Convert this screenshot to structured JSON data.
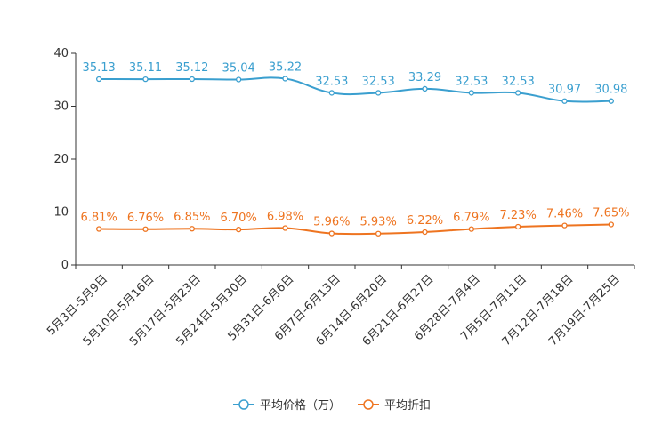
{
  "chart_data": {
    "type": "line",
    "categories": [
      "5月3日-5月9日",
      "5月10日-5月16日",
      "5月17日-5月23日",
      "5月24日-5月30日",
      "5月31日-6月6日",
      "6月7日-6月13日",
      "6月14日-6月20日",
      "6月21日-6月27日",
      "6月28日-7月4日",
      "7月5日-7月11日",
      "7月12日-7月18日",
      "7月19日-7月25日"
    ],
    "series": [
      {
        "name": "平均价格（万）",
        "color": "#3a9fcf",
        "values": [
          35.13,
          35.11,
          35.12,
          35.04,
          35.22,
          32.53,
          32.53,
          33.29,
          32.53,
          32.53,
          30.97,
          30.98
        ],
        "labels": [
          "35.13",
          "35.11",
          "35.12",
          "35.04",
          "35.22",
          "32.53",
          "32.53",
          "33.29",
          "32.53",
          "32.53",
          "30.97",
          "30.98"
        ]
      },
      {
        "name": "平均折扣",
        "color": "#ee7420",
        "values": [
          6.81,
          6.76,
          6.85,
          6.7,
          6.98,
          5.96,
          5.93,
          6.22,
          6.79,
          7.23,
          7.46,
          7.65
        ],
        "labels": [
          "6.81%",
          "6.76%",
          "6.85%",
          "6.70%",
          "6.98%",
          "5.96%",
          "5.93%",
          "6.22%",
          "6.79%",
          "7.23%",
          "7.46%",
          "7.65%"
        ]
      }
    ],
    "yticks": [
      "0",
      "10",
      "20",
      "30",
      "40"
    ],
    "ylim": [
      0,
      40
    ],
    "title": "",
    "xlabel": "",
    "ylabel": "",
    "legend_position": "bottom-center"
  }
}
